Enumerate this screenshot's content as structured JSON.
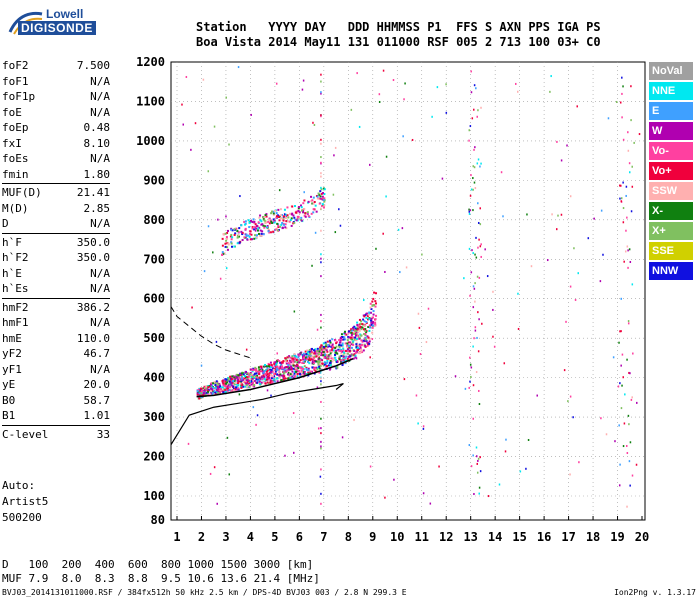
{
  "logo": {
    "line1": "Lowell",
    "line2": "DIGISONDE"
  },
  "header": {
    "labels": "Station   YYYY DAY   DDD HHMMSS P1  FFS S AXN PPS IGA PS",
    "values": "Boa Vista 2014 May11 131 011000 RSF 005 2 713 100 03+ C0"
  },
  "params": [
    {
      "name": "foF2",
      "value": "7.500"
    },
    {
      "name": "foF1",
      "value": "N/A"
    },
    {
      "name": "foF1p",
      "value": "N/A"
    },
    {
      "name": "foE",
      "value": "N/A"
    },
    {
      "name": "foEp",
      "value": "0.48"
    },
    {
      "name": "fxI",
      "value": "8.10"
    },
    {
      "name": "foEs",
      "value": "N/A"
    },
    {
      "name": "fmin",
      "value": "1.80"
    },
    {
      "name": "MUF(D)",
      "value": "21.41",
      "sep": true
    },
    {
      "name": "M(D)",
      "value": "2.85"
    },
    {
      "name": "D",
      "value": "N/A"
    },
    {
      "name": "h`F",
      "value": "350.0",
      "sep": true
    },
    {
      "name": "h`F2",
      "value": "350.0"
    },
    {
      "name": "h`E",
      "value": "N/A"
    },
    {
      "name": "h`Es",
      "value": "N/A"
    },
    {
      "name": "hmF2",
      "value": "386.2",
      "sep": true
    },
    {
      "name": "hmF1",
      "value": "N/A"
    },
    {
      "name": "hmE",
      "value": "110.0"
    },
    {
      "name": "yF2",
      "value": "46.7"
    },
    {
      "name": "yF1",
      "value": "N/A"
    },
    {
      "name": "yE",
      "value": "20.0"
    },
    {
      "name": "B0",
      "value": "58.7"
    },
    {
      "name": "B1",
      "value": "1.01"
    },
    {
      "name": "C-level",
      "value": "33",
      "sep": true
    }
  ],
  "auto": {
    "line1": "Auto:",
    "line2": "Artist5",
    "line3": "500200"
  },
  "legend": [
    {
      "label": "NoVal",
      "color": "#a0a0a0"
    },
    {
      "label": "NNE",
      "color": "#00e8f0"
    },
    {
      "label": "E",
      "color": "#3fa0ff"
    },
    {
      "label": "W",
      "color": "#b000b0"
    },
    {
      "label": "Vo-",
      "color": "#ff40a0"
    },
    {
      "label": "Vo+",
      "color": "#f0003c"
    },
    {
      "label": "SSW",
      "color": "#ffb0b0"
    },
    {
      "label": "X-",
      "color": "#108010"
    },
    {
      "label": "X+",
      "color": "#80c060"
    },
    {
      "label": "SSE",
      "color": "#d0d000"
    },
    {
      "label": "NNW",
      "color": "#1010e0"
    }
  ],
  "dmuf": {
    "d_label": "D",
    "d_values": "100  200  400  600  800 1000 1500 3000 [km]",
    "muf_label": "MUF",
    "muf_values": "7.9  8.0  8.3  8.8  9.5 10.6 13.6 21.4 [MHz]"
  },
  "footer": "BVJ03_2014131011000.RSF / 384fx512h 50 kHz 2.5 km / DPS-4D BVJ03 003 / 2.8 N 299.3 E",
  "version": "Ion2Png v. 1.3.17",
  "chart_data": {
    "type": "scatter",
    "xlabel": "",
    "ylabel": "",
    "xlim": [
      0.5,
      20
    ],
    "ylim": [
      80,
      1200
    ],
    "xticks": [
      1,
      2,
      3,
      4,
      5,
      6,
      7,
      8,
      9,
      10,
      11,
      12,
      13,
      14,
      15,
      16,
      17,
      18,
      19,
      20
    ],
    "yticks": [
      80,
      100,
      200,
      300,
      400,
      500,
      600,
      700,
      800,
      900,
      1000,
      1100,
      1200
    ],
    "grid": true,
    "series": [
      {
        "name": "F2 trace",
        "x": [
          1.8,
          2.5,
          3.5,
          4.5,
          5.5,
          6.5,
          7.5,
          8.2,
          8.8,
          9.0
        ],
        "y": [
          355,
          370,
          385,
          400,
          415,
          430,
          450,
          475,
          510,
          560
        ]
      },
      {
        "name": "Multiple hop",
        "x": [
          2.8,
          3.5,
          4.5,
          5.5,
          6.3,
          6.9
        ],
        "y": [
          740,
          765,
          790,
          810,
          830,
          855
        ]
      },
      {
        "name": "Profile",
        "x": [
          0.5,
          1.5,
          2.5,
          3.5,
          4.5,
          5.5,
          6.5,
          7.5,
          7.8
        ],
        "y": [
          230,
          305,
          325,
          335,
          345,
          360,
          370,
          380,
          385
        ]
      },
      {
        "name": "Profile extension",
        "x": [
          0.5,
          1.0,
          1.5,
          2.0,
          2.5,
          3.0,
          3.5,
          4.0
        ],
        "y": [
          580,
          555,
          530,
          505,
          485,
          470,
          460,
          450
        ]
      }
    ]
  }
}
